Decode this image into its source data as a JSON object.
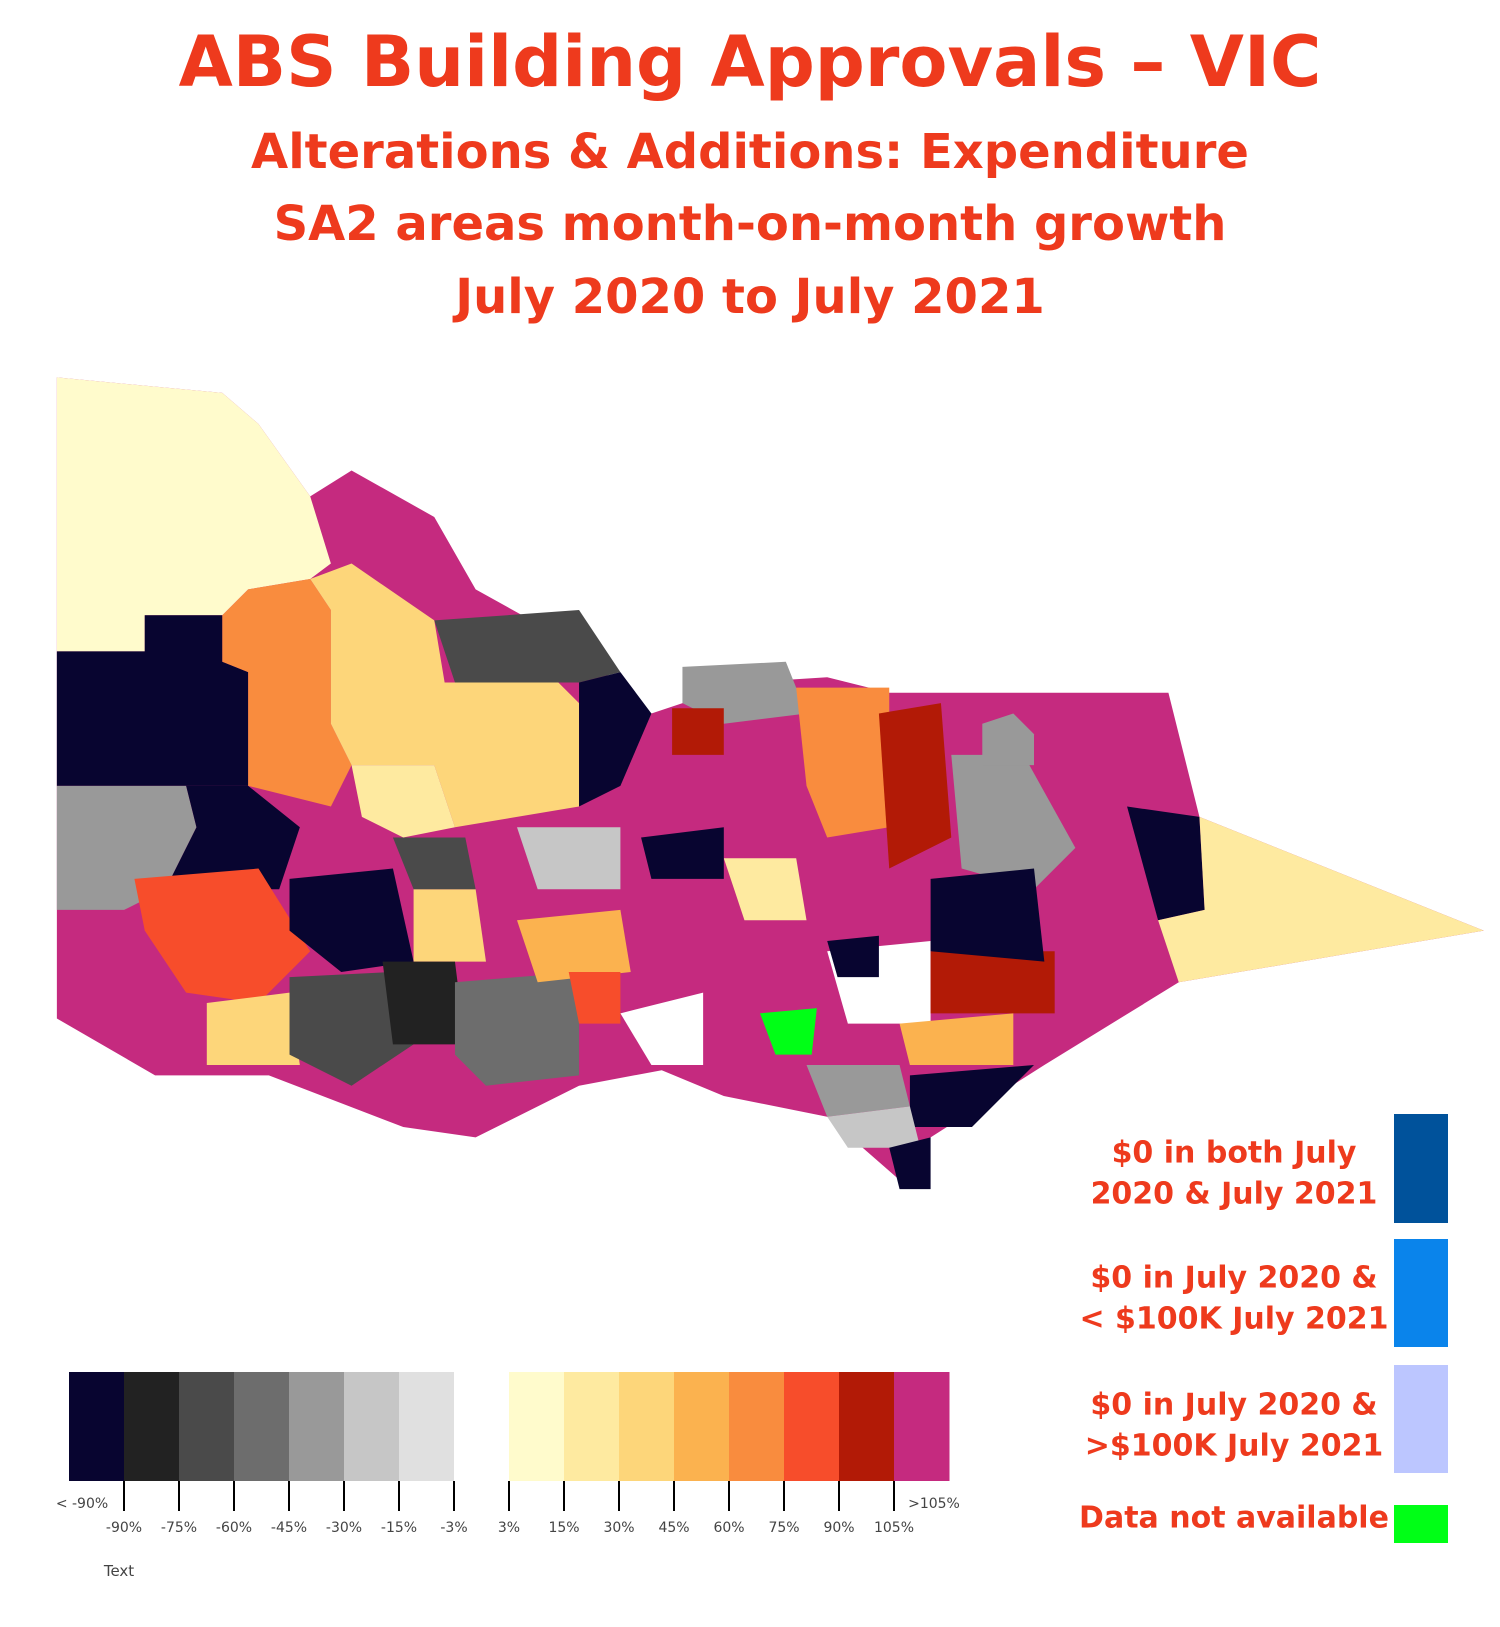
{
  "header": {
    "title": "ABS Building Approvals – VIC",
    "subtitle_lines": [
      "Alterations & Additions: Expenditure",
      "SA2 areas month-on-month growth",
      "July 2020 to July 2021"
    ]
  },
  "colorbar": {
    "colors": [
      "#080530",
      "#222222",
      "#4a4a4a",
      "#6d6d6d",
      "#999999",
      "#c6c6c6",
      "#e0e0e0",
      "#ffffff",
      "#fffbcc",
      "#feeaa0",
      "#fdd67a",
      "#fbb24f",
      "#f98c3e",
      "#f74d2b",
      "#b21a06",
      "#c52a7f"
    ],
    "low_label": "< -90%",
    "high_label": ">105%",
    "ticks": [
      "-90%",
      "-75%",
      "-60%",
      "-45%",
      "-30%",
      "-15%",
      "-3%",
      "3%",
      "15%",
      "30%",
      "45%",
      "60%",
      "75%",
      "90%",
      "105%"
    ],
    "caption": "Text"
  },
  "side_legend": [
    {
      "lines": [
        "$0 in both July",
        "2020 & July 2021"
      ],
      "color": "#00529b"
    },
    {
      "lines": [
        "$0 in July 2020 &",
        "< $100K July 2021"
      ],
      "color": "#0a84eb"
    },
    {
      "lines": [
        "$0 in July 2020 &",
        ">$100K July 2021"
      ],
      "color": "#bcc6ff"
    },
    {
      "lines": [
        "Data not available"
      ],
      "color": "#00ff16"
    }
  ]
}
